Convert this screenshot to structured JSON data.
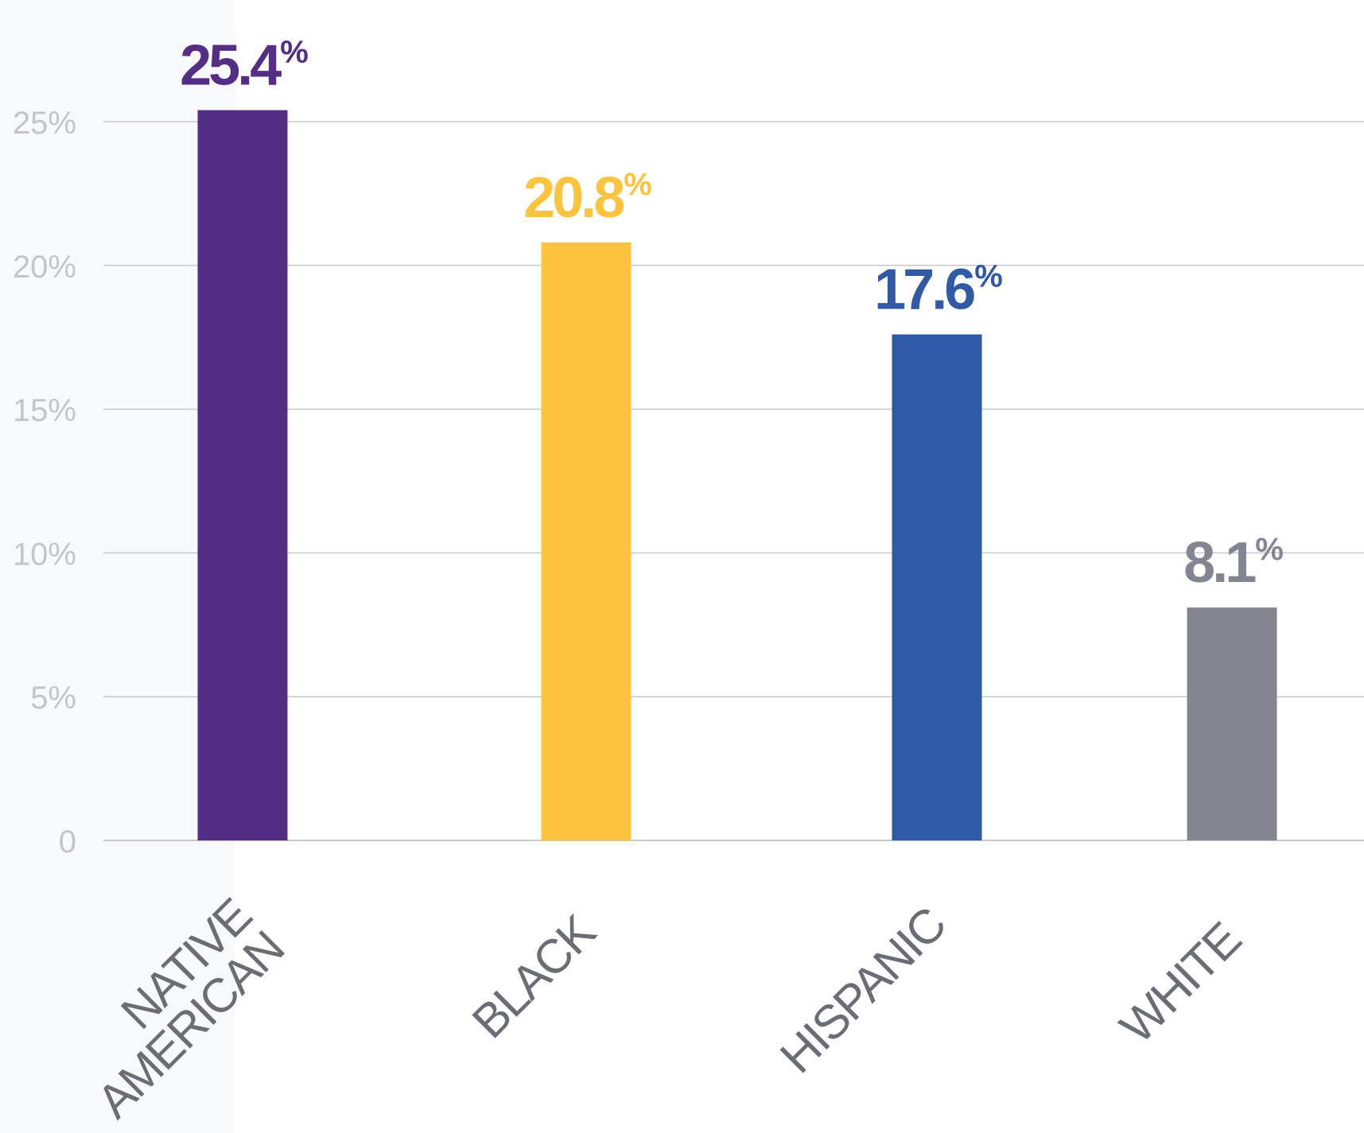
{
  "chart_data": {
    "type": "bar",
    "categories": [
      "NATIVE AMERICAN",
      "BLACK",
      "HISPANIC",
      "WHITE"
    ],
    "category_lines": [
      [
        "NATIVE",
        "AMERICAN"
      ],
      [
        "BLACK"
      ],
      [
        "HISPANIC"
      ],
      [
        "WHITE"
      ]
    ],
    "values": [
      25.4,
      20.8,
      17.6,
      8.1
    ],
    "value_labels": [
      "25.4",
      "20.8",
      "17.6",
      "8.1"
    ],
    "value_unit": "%",
    "bar_colors": [
      "#542d85",
      "#fcc33f",
      "#3059a6",
      "#838690"
    ],
    "y_ticks": [
      0,
      5,
      10,
      15,
      20,
      25
    ],
    "y_tick_labels": [
      "0",
      "5%",
      "10%",
      "15%",
      "20%",
      "25%"
    ],
    "ylim": [
      0,
      25
    ],
    "grid": true,
    "grid_color": "#c9c9cc",
    "tick_label_color": "#c3c5cc",
    "category_label_color": "#6b6d74",
    "title": "",
    "xlabel": "",
    "ylabel": ""
  }
}
